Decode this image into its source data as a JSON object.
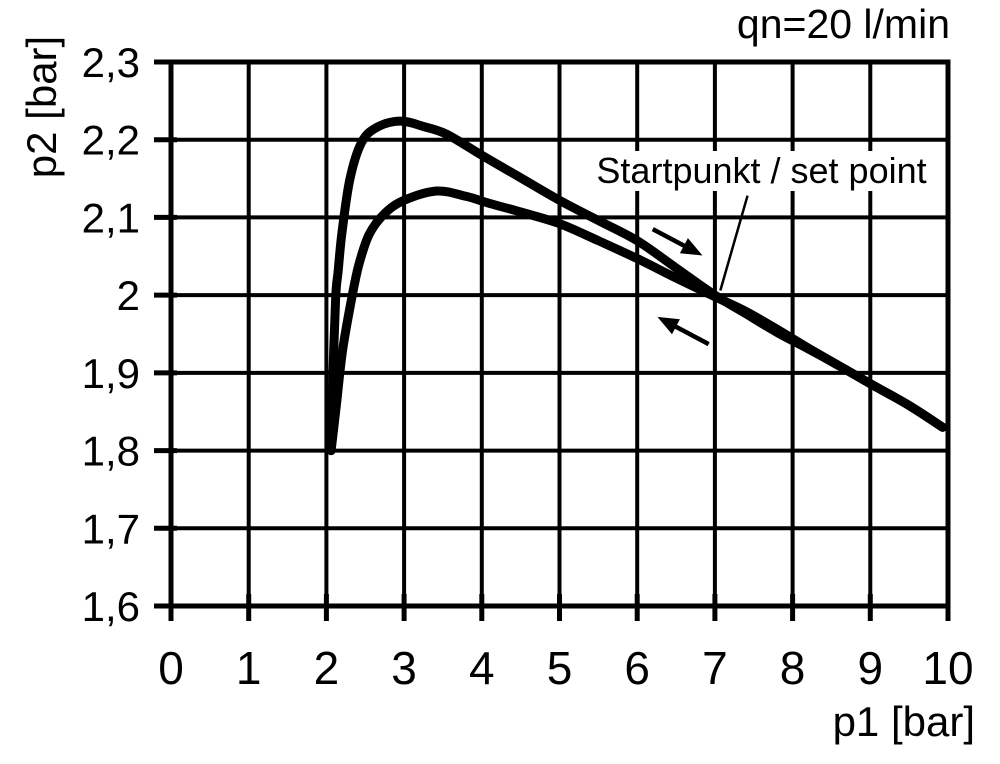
{
  "colors": {
    "foreground": "#000000",
    "background": "#ffffff"
  },
  "chart_data": {
    "type": "line",
    "title": "qn=20 l/min",
    "xlabel": "p1 [bar]",
    "ylabel": "p2 [bar]",
    "xlim": [
      0,
      10
    ],
    "ylim": [
      1.6,
      2.3
    ],
    "grid": true,
    "x_ticks": {
      "values": [
        0,
        1,
        2,
        3,
        4,
        5,
        6,
        7,
        8,
        9,
        10
      ],
      "labels": [
        "0",
        "1",
        "2",
        "3",
        "4",
        "5",
        "6",
        "7",
        "8",
        "9",
        "10"
      ]
    },
    "y_ticks": {
      "values": [
        2.3,
        2.2,
        2.1,
        2.0,
        1.9,
        1.8,
        1.7,
        1.6
      ],
      "labels": [
        "2,3",
        "2,2",
        "2,1",
        "2",
        "1,9",
        "1,8",
        "1,7",
        "1,6"
      ]
    },
    "series": [
      {
        "name": "curve-forward-upper",
        "direction": "right",
        "points": [
          [
            2.06,
            1.8
          ],
          [
            2.085,
            1.9
          ],
          [
            2.12,
            1.998
          ],
          [
            2.15,
            2.03
          ],
          [
            2.2,
            2.08
          ],
          [
            2.3,
            2.148
          ],
          [
            2.45,
            2.196
          ],
          [
            2.65,
            2.216
          ],
          [
            2.95,
            2.224
          ],
          [
            3.25,
            2.217
          ],
          [
            3.55,
            2.207
          ],
          [
            4.0,
            2.18
          ],
          [
            4.5,
            2.151
          ],
          [
            5.0,
            2.122
          ],
          [
            5.5,
            2.096
          ],
          [
            6.0,
            2.07
          ],
          [
            6.5,
            2.035
          ],
          [
            7.0,
            2.0
          ],
          [
            7.4,
            1.976
          ],
          [
            7.8,
            1.952
          ],
          [
            8.2,
            1.931
          ],
          [
            8.6,
            1.909
          ],
          [
            9.0,
            1.886
          ],
          [
            9.5,
            1.858
          ],
          [
            9.93,
            1.83
          ]
        ]
      },
      {
        "name": "curve-return-lower",
        "direction": "left",
        "points": [
          [
            2.06,
            1.8
          ],
          [
            2.13,
            1.86
          ],
          [
            2.21,
            1.93
          ],
          [
            2.33,
            1.998
          ],
          [
            2.42,
            2.04
          ],
          [
            2.55,
            2.078
          ],
          [
            2.75,
            2.105
          ],
          [
            3.0,
            2.122
          ],
          [
            3.42,
            2.134
          ],
          [
            3.8,
            2.127
          ],
          [
            4.1,
            2.118
          ],
          [
            4.5,
            2.107
          ],
          [
            5.0,
            2.092
          ],
          [
            5.5,
            2.07
          ],
          [
            6.0,
            2.047
          ],
          [
            6.5,
            2.022
          ],
          [
            7.0,
            1.998
          ],
          [
            7.4,
            1.979
          ],
          [
            7.8,
            1.956
          ],
          [
            8.2,
            1.932
          ],
          [
            8.6,
            1.909
          ],
          [
            9.0,
            1.886
          ],
          [
            9.5,
            1.858
          ],
          [
            9.93,
            1.83
          ]
        ]
      }
    ],
    "arrows": [
      {
        "name": "forward-direction-arrow",
        "from": [
          6.2,
          2.085
        ],
        "to": [
          6.84,
          2.051
        ]
      },
      {
        "name": "return-direction-arrow",
        "from": [
          6.92,
          1.937
        ],
        "to": [
          6.26,
          1.972
        ]
      }
    ],
    "annotation": {
      "text": "Startpunkt / set point",
      "label_center": [
        7.6,
        2.16
      ],
      "pointer_from": [
        7.42,
        2.128
      ],
      "pointer_to": [
        7.07,
        2.006
      ],
      "set_point": {
        "p1": 7,
        "p2": 2.0
      }
    }
  }
}
